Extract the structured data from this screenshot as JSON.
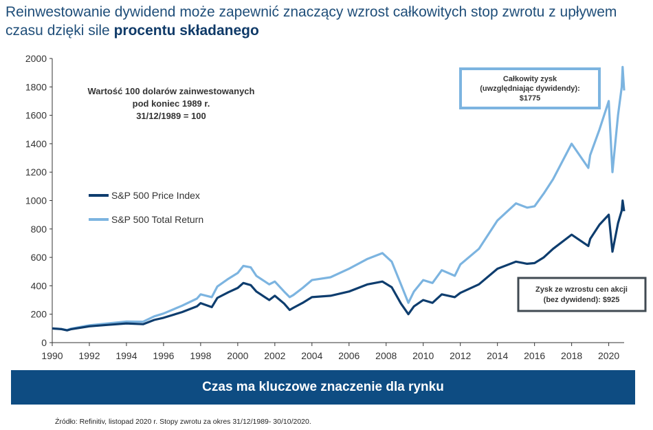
{
  "title": {
    "text_part1": "Reinwestowanie dywidend może zapewnić znaczący wzrost całkowitych stop zwrotu z upływem czasu dzięki sile",
    "text_bold": "procentu składanego"
  },
  "chart_data": {
    "type": "line",
    "x_ticks": [
      "1990",
      "1992",
      "1994",
      "1996",
      "1998",
      "2000",
      "2002",
      "2004",
      "2006",
      "2008",
      "2010",
      "2012",
      "2014",
      "2016",
      "2018",
      "2020"
    ],
    "y_ticks": [
      "0",
      "200",
      "400",
      "600",
      "800",
      "1000",
      "1200",
      "1400",
      "1600",
      "1800",
      "2000"
    ],
    "xlim": [
      1990,
      2020.83
    ],
    "ylim": [
      0,
      2000
    ],
    "grid": false,
    "legend_position": "left",
    "annotation_note": {
      "line1": "Wartość 100 dolarów zainwestowanych",
      "line2": "pod koniec 1989 r.",
      "line3": "31/12/1989 = 100"
    },
    "callout_total": {
      "line1": "Całkowity zysk",
      "line2": "(uwzględniając dywidendy):",
      "line3": "$1775"
    },
    "callout_price": {
      "line1": "Zysk ze wzrostu cen akcji",
      "line2": "(bez dywidend): $925"
    },
    "series": [
      {
        "name": "S&P 500 Price Index",
        "color": "#0e3d6e",
        "points": [
          [
            1990,
            100
          ],
          [
            1990.5,
            95
          ],
          [
            1990.8,
            86
          ],
          [
            1991,
            94
          ],
          [
            1992,
            115
          ],
          [
            1993,
            125
          ],
          [
            1994,
            135
          ],
          [
            1994.9,
            130
          ],
          [
            1995.5,
            160
          ],
          [
            1996,
            175
          ],
          [
            1997,
            215
          ],
          [
            1997.8,
            255
          ],
          [
            1998,
            278
          ],
          [
            1998.6,
            250
          ],
          [
            1998.9,
            315
          ],
          [
            1999.5,
            355
          ],
          [
            2000,
            385
          ],
          [
            2000.3,
            420
          ],
          [
            2000.7,
            405
          ],
          [
            2001,
            360
          ],
          [
            2001.7,
            300
          ],
          [
            2002,
            330
          ],
          [
            2002.5,
            275
          ],
          [
            2002.8,
            230
          ],
          [
            2003,
            245
          ],
          [
            2003.5,
            280
          ],
          [
            2004,
            320
          ],
          [
            2005,
            330
          ],
          [
            2006,
            360
          ],
          [
            2007,
            410
          ],
          [
            2007.8,
            430
          ],
          [
            2008.3,
            390
          ],
          [
            2008.8,
            275
          ],
          [
            2009.2,
            200
          ],
          [
            2009.5,
            255
          ],
          [
            2010,
            300
          ],
          [
            2010.5,
            280
          ],
          [
            2011,
            340
          ],
          [
            2011.7,
            320
          ],
          [
            2012,
            350
          ],
          [
            2013,
            410
          ],
          [
            2014,
            520
          ],
          [
            2015,
            570
          ],
          [
            2015.6,
            555
          ],
          [
            2016,
            560
          ],
          [
            2016.5,
            600
          ],
          [
            2017,
            660
          ],
          [
            2018,
            760
          ],
          [
            2018.9,
            680
          ],
          [
            2019,
            730
          ],
          [
            2019.5,
            830
          ],
          [
            2020,
            900
          ],
          [
            2020.2,
            640
          ],
          [
            2020.5,
            840
          ],
          [
            2020.7,
            930
          ],
          [
            2020.75,
            1000
          ],
          [
            2020.83,
            925
          ]
        ]
      },
      {
        "name": "S&P 500 Total Return",
        "color": "#7cb4e0",
        "points": [
          [
            1990,
            100
          ],
          [
            1990.5,
            96
          ],
          [
            1990.8,
            88
          ],
          [
            1991,
            98
          ],
          [
            1992,
            122
          ],
          [
            1993,
            135
          ],
          [
            1994,
            148
          ],
          [
            1994.9,
            147
          ],
          [
            1995.5,
            185
          ],
          [
            1996,
            205
          ],
          [
            1997,
            260
          ],
          [
            1997.8,
            310
          ],
          [
            1998,
            340
          ],
          [
            1998.6,
            320
          ],
          [
            1998.9,
            395
          ],
          [
            1999.5,
            450
          ],
          [
            2000,
            490
          ],
          [
            2000.3,
            540
          ],
          [
            2000.7,
            530
          ],
          [
            2001,
            470
          ],
          [
            2001.7,
            410
          ],
          [
            2002,
            430
          ],
          [
            2002.5,
            360
          ],
          [
            2002.8,
            320
          ],
          [
            2003,
            335
          ],
          [
            2003.5,
            385
          ],
          [
            2004,
            440
          ],
          [
            2005,
            460
          ],
          [
            2006,
            520
          ],
          [
            2007,
            590
          ],
          [
            2007.8,
            630
          ],
          [
            2008.3,
            570
          ],
          [
            2008.8,
            410
          ],
          [
            2009.2,
            280
          ],
          [
            2009.5,
            360
          ],
          [
            2010,
            440
          ],
          [
            2010.5,
            420
          ],
          [
            2011,
            510
          ],
          [
            2011.7,
            470
          ],
          [
            2012,
            550
          ],
          [
            2013,
            660
          ],
          [
            2014,
            860
          ],
          [
            2015,
            980
          ],
          [
            2015.6,
            950
          ],
          [
            2016,
            960
          ],
          [
            2016.5,
            1050
          ],
          [
            2017,
            1150
          ],
          [
            2018,
            1400
          ],
          [
            2018.9,
            1230
          ],
          [
            2019,
            1320
          ],
          [
            2019.5,
            1500
          ],
          [
            2020,
            1700
          ],
          [
            2020.2,
            1200
          ],
          [
            2020.5,
            1600
          ],
          [
            2020.7,
            1800
          ],
          [
            2020.75,
            1940
          ],
          [
            2020.83,
            1775
          ]
        ]
      }
    ]
  },
  "banner": "Czas ma kluczowe znaczenie dla rynku",
  "source": "Źródło: Refinitiv, listopad 2020 r. Stopy zwrotu za okres 31/12/1989- 30/10/2020."
}
